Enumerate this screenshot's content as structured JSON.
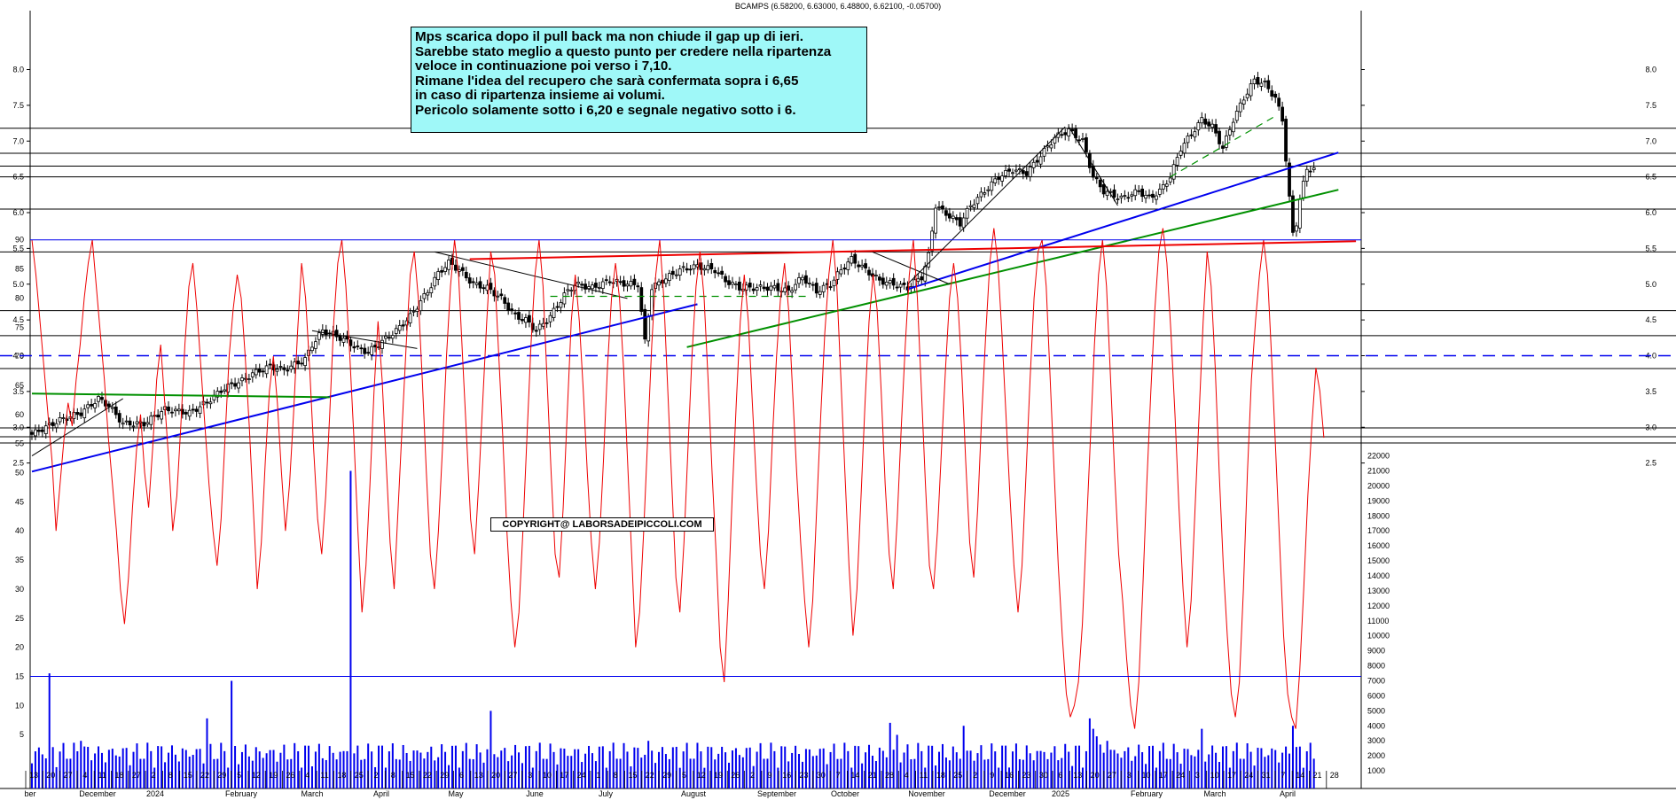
{
  "header": {
    "title": "BCAMPS (6.58200, 6.63000, 6.48800, 6.62100, -0.05700)"
  },
  "annotation": {
    "lines": [
      "Mps scarica dopo il pull back ma non chiude il gap up di ieri.",
      "Sarebbe stato meglio a questo punto per credere nella ripartenza",
      "veloce in continuazione poi verso i 7,10.",
      "Rimane l'idea del recupero che sarà confermata sopra i 6,65",
      "in caso di ripartenza insieme ai volumi.",
      "Pericolo solamente sotto i 6,20 e segnale negativo sotto i 6."
    ]
  },
  "copyright": "COPYRIGHT@ LABORSADEIPICCOLI.COM",
  "colors": {
    "blue": "#0000ee",
    "red": "#ee0000",
    "green": "#009000",
    "gray": "#000000",
    "note_bg": "#9ff8f8"
  },
  "chart_data": [
    {
      "type": "candlestick",
      "title": "BCAMPS",
      "ylim": [
        2.3,
        8.25
      ],
      "yticks": [
        "2.5",
        "3.0",
        "3.5",
        "4.0",
        "4.5",
        "5.0",
        "5.5",
        "6.0",
        "6.5",
        "7.0",
        "7.5",
        "8.0"
      ],
      "anchors": [
        [
          0,
          2.9
        ],
        [
          8,
          3.1
        ],
        [
          14,
          3.2
        ],
        [
          19,
          3.4
        ],
        [
          22,
          3.3
        ],
        [
          26,
          3.05
        ],
        [
          32,
          3.05
        ],
        [
          38,
          3.25
        ],
        [
          45,
          3.2
        ],
        [
          50,
          3.35
        ],
        [
          55,
          3.55
        ],
        [
          60,
          3.65
        ],
        [
          63,
          3.75
        ],
        [
          68,
          3.85
        ],
        [
          72,
          3.8
        ],
        [
          78,
          3.95
        ],
        [
          80,
          4.15
        ],
        [
          83,
          4.35
        ],
        [
          86,
          4.3
        ],
        [
          90,
          4.2
        ],
        [
          93,
          4.1
        ],
        [
          96,
          4.05
        ],
        [
          100,
          4.2
        ],
        [
          104,
          4.35
        ],
        [
          108,
          4.55
        ],
        [
          113,
          4.9
        ],
        [
          116,
          5.15
        ],
        [
          119,
          5.3
        ],
        [
          122,
          5.2
        ],
        [
          126,
          5.0
        ],
        [
          130,
          4.95
        ],
        [
          134,
          4.8
        ],
        [
          138,
          4.55
        ],
        [
          141,
          4.5
        ],
        [
          144,
          4.35
        ],
        [
          148,
          4.55
        ],
        [
          152,
          4.85
        ],
        [
          155,
          5.0
        ],
        [
          160,
          4.95
        ],
        [
          165,
          5.05
        ],
        [
          170,
          5.0
        ],
        [
          173,
          5.0
        ],
        [
          175,
          4.2
        ],
        [
          177,
          4.95
        ],
        [
          180,
          5.05
        ],
        [
          185,
          5.2
        ],
        [
          190,
          5.25
        ],
        [
          195,
          5.2
        ],
        [
          198,
          5.05
        ],
        [
          202,
          4.95
        ],
        [
          207,
          4.95
        ],
        [
          212,
          4.95
        ],
        [
          216,
          4.9
        ],
        [
          220,
          5.1
        ],
        [
          224,
          4.9
        ],
        [
          228,
          5.0
        ],
        [
          231,
          5.2
        ],
        [
          234,
          5.35
        ],
        [
          238,
          5.2
        ],
        [
          242,
          5.05
        ],
        [
          246,
          5.0
        ],
        [
          250,
          4.95
        ],
        [
          254,
          5.1
        ],
        [
          256,
          5.4
        ],
        [
          258,
          6.1
        ],
        [
          262,
          5.95
        ],
        [
          265,
          5.85
        ],
        [
          268,
          6.1
        ],
        [
          272,
          6.3
        ],
        [
          276,
          6.5
        ],
        [
          280,
          6.6
        ],
        [
          284,
          6.55
        ],
        [
          288,
          6.8
        ],
        [
          292,
          7.05
        ],
        [
          296,
          7.15
        ],
        [
          300,
          7.0
        ],
        [
          303,
          6.5
        ],
        [
          306,
          6.3
        ],
        [
          311,
          6.2
        ],
        [
          316,
          6.3
        ],
        [
          319,
          6.2
        ],
        [
          322,
          6.3
        ],
        [
          325,
          6.5
        ],
        [
          328,
          6.9
        ],
        [
          331,
          7.1
        ],
        [
          334,
          7.3
        ],
        [
          337,
          7.2
        ],
        [
          340,
          6.9
        ],
        [
          343,
          7.3
        ],
        [
          346,
          7.6
        ],
        [
          349,
          7.85
        ],
        [
          352,
          7.8
        ],
        [
          355,
          7.6
        ],
        [
          357,
          7.3
        ],
        [
          359,
          6.2
        ],
        [
          360,
          5.7
        ],
        [
          361,
          5.85
        ],
        [
          362,
          6.2
        ],
        [
          364,
          6.6
        ],
        [
          366,
          6.62
        ]
      ],
      "hlines": [
        2.99,
        3.82,
        4.28,
        4.63,
        5.45,
        6.05,
        6.5,
        6.65,
        6.83,
        7.18
      ],
      "dashed_hline": 4.0,
      "trendlines": [
        {
          "color": "blue",
          "from": [
            0,
            2.38
          ],
          "to": [
            190,
            4.72
          ]
        },
        {
          "color": "blue",
          "from": [
            250,
            4.93
          ],
          "to": [
            373,
            6.84
          ]
        },
        {
          "color": "green",
          "from": [
            187,
            4.12
          ],
          "to": [
            373,
            6.32
          ]
        },
        {
          "color": "red",
          "from": [
            125,
            5.35
          ],
          "to": [
            378,
            5.6
          ]
        },
        {
          "color": "green",
          "from": [
            0,
            3.47
          ],
          "to": [
            85,
            3.42
          ]
        }
      ]
    },
    {
      "type": "line",
      "title": "",
      "ylim": [
        0,
        95
      ],
      "yticks": [
        "5",
        "10",
        "15",
        "20",
        "25",
        "30",
        "35",
        "40",
        "45",
        "50",
        "55",
        "60",
        "65",
        "70",
        "75",
        "80",
        "85",
        "90"
      ],
      "series": [
        {
          "name": "",
          "values": [
            90,
            84,
            76,
            68,
            60,
            52,
            40,
            48,
            56,
            62,
            58,
            66,
            72,
            80,
            86,
            90,
            82,
            74,
            66,
            56,
            48,
            40,
            30,
            24,
            32,
            44,
            54,
            60,
            50,
            44,
            54,
            66,
            72,
            62,
            52,
            40,
            46,
            58,
            72,
            82,
            86,
            78,
            68,
            58,
            48,
            40,
            34,
            42,
            56,
            70,
            78,
            84,
            80,
            70,
            58,
            44,
            30,
            38,
            52,
            64,
            70,
            62,
            50,
            40,
            48,
            60,
            74,
            86,
            80,
            68,
            54,
            42,
            36,
            46,
            60,
            76,
            86,
            90,
            82,
            70,
            56,
            40,
            26,
            34,
            48,
            64,
            76,
            66,
            52,
            38,
            30,
            44,
            58,
            72,
            84,
            88,
            80,
            66,
            50,
            36,
            30,
            40,
            54,
            70,
            82,
            90,
            84,
            70,
            56,
            42,
            36,
            48,
            62,
            76,
            88,
            84,
            70,
            56,
            40,
            28,
            20,
            26,
            40,
            56,
            72,
            84,
            90,
            82,
            66,
            50,
            36,
            32,
            44,
            60,
            76,
            84,
            76,
            64,
            50,
            38,
            30,
            38,
            52,
            68,
            80,
            86,
            80,
            68,
            52,
            36,
            20,
            26,
            40,
            56,
            72,
            84,
            90,
            80,
            64,
            48,
            32,
            26,
            38,
            54,
            70,
            82,
            88,
            80,
            66,
            50,
            36,
            20,
            14,
            28,
            46,
            62,
            76,
            84,
            76,
            62,
            48,
            36,
            30,
            40,
            56,
            70,
            80,
            86,
            78,
            64,
            50,
            38,
            28,
            20,
            28,
            44,
            60,
            74,
            84,
            90,
            82,
            66,
            50,
            34,
            22,
            30,
            46,
            62,
            76,
            84,
            78,
            64,
            48,
            36,
            30,
            42,
            58,
            72,
            84,
            90,
            80,
            64,
            48,
            34,
            30,
            40,
            54,
            68,
            80,
            86,
            80,
            68,
            52,
            38,
            32,
            44,
            60,
            74,
            86,
            92,
            86,
            74,
            60,
            46,
            34,
            26,
            34,
            50,
            66,
            80,
            88,
            90,
            82,
            66,
            50,
            34,
            22,
            12,
            8,
            10,
            14,
            24,
            40,
            56,
            72,
            84,
            90,
            82,
            66,
            50,
            36,
            28,
            18,
            10,
            6,
            14,
            30,
            48,
            64,
            78,
            88,
            92,
            86,
            74,
            60,
            44,
            30,
            20,
            28,
            44,
            60,
            76,
            88,
            82,
            68,
            50,
            34,
            22,
            12,
            8,
            14,
            30,
            50,
            66,
            76,
            84,
            90,
            84,
            70,
            54,
            38,
            22,
            12,
            8,
            6,
            16,
            30,
            46,
            58,
            68,
            64,
            56
          ]
        }
      ]
    },
    {
      "type": "bar",
      "title": "",
      "ylim": [
        0,
        22000
      ],
      "yticks": [
        "1000",
        "2000",
        "3000",
        "4000",
        "5000",
        "6000",
        "7000",
        "8000",
        "9000",
        "10000",
        "11000",
        "12000",
        "13000",
        "14000",
        "15000",
        "16000",
        "17000",
        "18000",
        "19000",
        "20000",
        "21000",
        "22000"
      ],
      "spikes": [
        [
          5,
          7500
        ],
        [
          14,
          3000
        ],
        [
          50,
          4500
        ],
        [
          57,
          7000
        ],
        [
          91,
          21000
        ],
        [
          131,
          5000
        ],
        [
          176,
          3000
        ],
        [
          245,
          4200
        ],
        [
          247,
          3400
        ],
        [
          266,
          4000
        ],
        [
          302,
          4500
        ],
        [
          303,
          3800
        ],
        [
          304,
          3300
        ],
        [
          307,
          3000
        ],
        [
          334,
          3800
        ],
        [
          360,
          4000
        ]
      ]
    }
  ],
  "x_axis": {
    "day_labels": [
      "13",
      "20",
      "27",
      "4",
      "11",
      "18",
      "27",
      "2",
      "8",
      "15",
      "22",
      "29",
      "5",
      "12",
      "19",
      "26",
      "4",
      "11",
      "18",
      "25",
      "2",
      "8",
      "15",
      "22",
      "29",
      "6",
      "13",
      "20",
      "27",
      "3",
      "10",
      "17",
      "24",
      "1",
      "8",
      "15",
      "22",
      "29",
      "5",
      "12",
      "19",
      "26",
      "2",
      "9",
      "16",
      "23",
      "30",
      "7",
      "14",
      "21",
      "28",
      "4",
      "11",
      "18",
      "25",
      "2",
      "9",
      "16",
      "23",
      "30",
      "6",
      "13",
      "20",
      "27",
      "3",
      "10",
      "17",
      "24",
      "3",
      "10",
      "17",
      "24",
      "31",
      "7",
      "14",
      "21",
      "28"
    ],
    "months": [
      "ber",
      "December",
      "2024",
      "February",
      "March",
      "April",
      "May",
      "June",
      "July",
      "August",
      "September",
      "October",
      "November",
      "December",
      "2025",
      "February",
      "March",
      "April"
    ]
  }
}
